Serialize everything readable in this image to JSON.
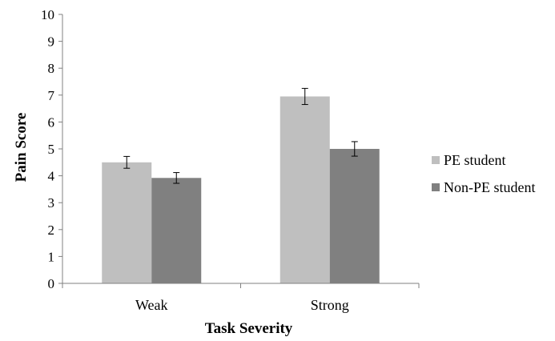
{
  "chart_data": {
    "type": "bar",
    "title": "",
    "xlabel": "Task Severity",
    "ylabel": "Pain Score",
    "categories": [
      "Weak",
      "Strong"
    ],
    "ylim": [
      0,
      10
    ],
    "yticks": [
      0,
      1,
      2,
      3,
      4,
      5,
      6,
      7,
      8,
      9,
      10
    ],
    "grid": false,
    "legend_position": "right",
    "series": [
      {
        "name": "PE student",
        "values": [
          4.5,
          6.95
        ],
        "errors": [
          0.22,
          0.3
        ],
        "color": "#bfbfbf"
      },
      {
        "name": "Non-PE student",
        "values": [
          3.92,
          5.0
        ],
        "errors": [
          0.2,
          0.27
        ],
        "color": "#808080"
      }
    ]
  }
}
